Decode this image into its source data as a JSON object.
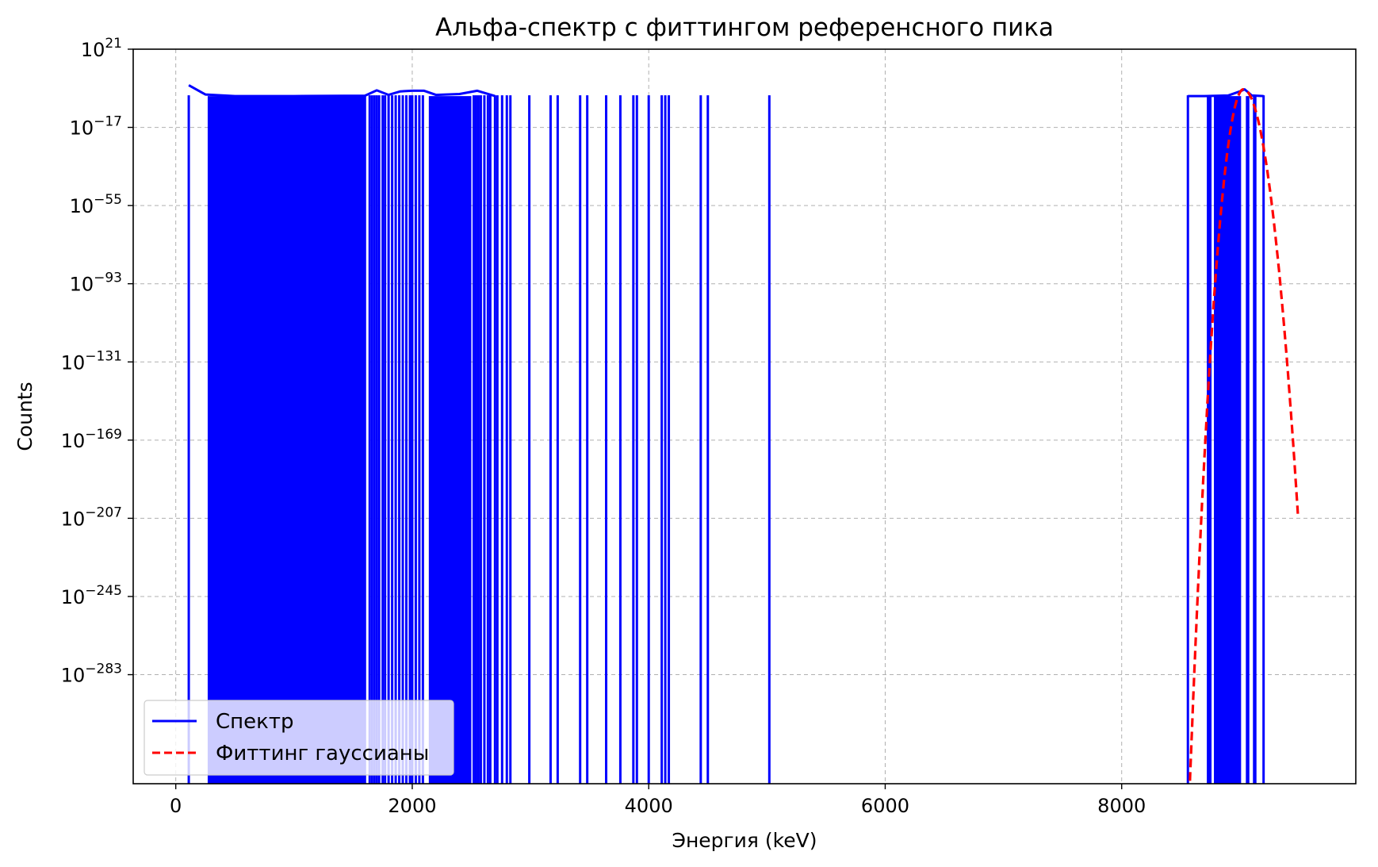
{
  "chart_data": {
    "type": "line",
    "title": "Альфа-спектр с фиттингом референсного пика",
    "xlabel": "Энергия (keV)",
    "ylabel": "Counts",
    "xlim": [
      -360,
      9980
    ],
    "ylim_exp": [
      -336,
      21
    ],
    "y_scale": "log",
    "grid": true,
    "legend_position": "lower-left",
    "x_ticks": [
      {
        "value": 0,
        "label": "0"
      },
      {
        "value": 2000,
        "label": "2000"
      },
      {
        "value": 4000,
        "label": "4000"
      },
      {
        "value": 6000,
        "label": "6000"
      },
      {
        "value": 8000,
        "label": "8000"
      }
    ],
    "y_ticks": [
      {
        "exp": 21,
        "base": "10",
        "sup": "21"
      },
      {
        "exp": -17,
        "base": "10",
        "sup": "−17"
      },
      {
        "exp": -55,
        "base": "10",
        "sup": "−55"
      },
      {
        "exp": -93,
        "base": "10",
        "sup": "−93"
      },
      {
        "exp": -131,
        "base": "10",
        "sup": "−131"
      },
      {
        "exp": -169,
        "base": "10",
        "sup": "−169"
      },
      {
        "exp": -207,
        "base": "10",
        "sup": "−207"
      },
      {
        "exp": -245,
        "base": "10",
        "sup": "−245"
      },
      {
        "exp": -283,
        "base": "10",
        "sup": "−283"
      }
    ],
    "series": [
      {
        "name": "Спектр",
        "color": "#0000ff",
        "style": "solid",
        "fill_bands_keV": [
          [
            270,
            1610
          ],
          [
            2140,
            2500
          ]
        ],
        "spikes_keV": [
          110,
          1640,
          1660,
          1680,
          1700,
          1720,
          1750,
          1770,
          1800,
          1830,
          1860,
          1890,
          1920,
          1950,
          1980,
          2000,
          2030,
          2060,
          2090,
          2520,
          2540,
          2560,
          2580,
          2610,
          2640,
          2660,
          2700,
          2720,
          2760,
          2800,
          2830,
          2990,
          3170,
          3230,
          3420,
          3480,
          3640,
          3760,
          3870,
          3900,
          4000,
          4110,
          4140,
          4170,
          4440,
          4500,
          5020,
          8560
        ],
        "peak_bands_keV": [
          [
            8720,
            8760
          ],
          [
            8780,
            9010
          ],
          [
            9050,
            9080
          ],
          [
            9110,
            9140
          ]
        ],
        "peak_spikes_keV": [
          9200
        ],
        "envelope": [
          {
            "x": 110,
            "y_exp": 3.5
          },
          {
            "x": 250,
            "y_exp": -1
          },
          {
            "x": 500,
            "y_exp": -1.8
          },
          {
            "x": 1000,
            "y_exp": -1.8
          },
          {
            "x": 1600,
            "y_exp": -1.6
          },
          {
            "x": 1700,
            "y_exp": 1.0
          },
          {
            "x": 1800,
            "y_exp": -1.2
          },
          {
            "x": 1900,
            "y_exp": 0.5
          },
          {
            "x": 2000,
            "y_exp": 0.8
          },
          {
            "x": 2100,
            "y_exp": 0.8
          },
          {
            "x": 2200,
            "y_exp": -1.2
          },
          {
            "x": 2400,
            "y_exp": -0.8
          },
          {
            "x": 2550,
            "y_exp": 0.8
          },
          {
            "x": 2700,
            "y_exp": -1.8
          },
          {
            "x": 8560,
            "y_exp": -1.8
          },
          {
            "x": 8700,
            "y_exp": -1.8
          },
          {
            "x": 8900,
            "y_exp": -1.5
          },
          {
            "x": 9000,
            "y_exp": 0.5
          },
          {
            "x": 9040,
            "y_exp": 1.5
          },
          {
            "x": 9100,
            "y_exp": -1.5
          },
          {
            "x": 9200,
            "y_exp": -1.8
          }
        ]
      },
      {
        "name": "Фиттинг гауссианы",
        "color": "#ff0000",
        "style": "dashed",
        "gaussian": {
          "mu": 9030,
          "peak_exp": 1.5,
          "k_left": 0.00164,
          "k_right": 0.000975,
          "x_from": 8560,
          "x_to": 9490
        }
      }
    ]
  }
}
